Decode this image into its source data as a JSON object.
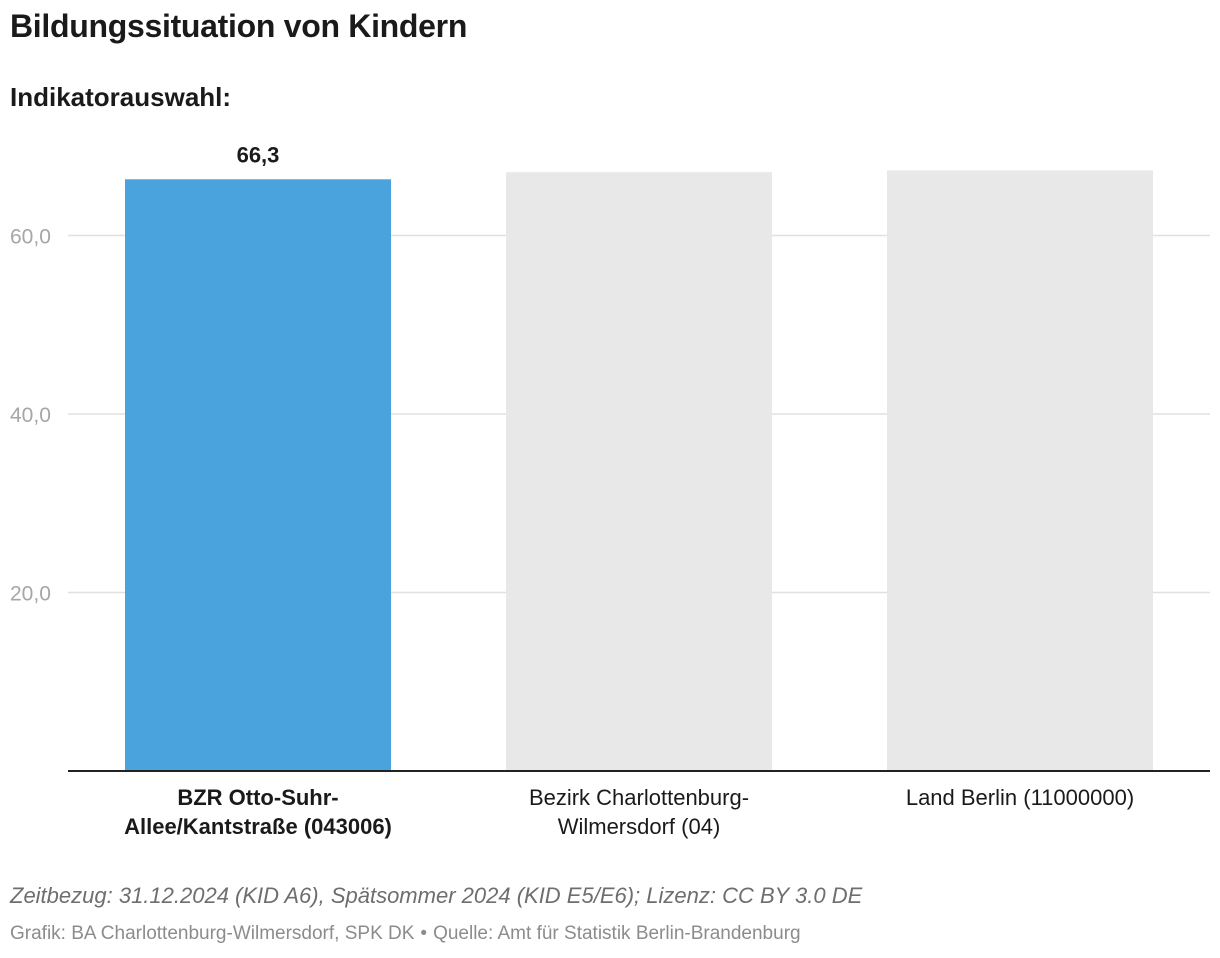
{
  "title": "Bildungssituation von Kindern",
  "subtitle": "Indikatorauswahl:",
  "colors": {
    "highlight": "#4ba3de",
    "muted": "#e8e8e8",
    "grid": "#e0e0e0",
    "axis": "#222222"
  },
  "chart_data": {
    "type": "bar",
    "title": "Bildungssituation von Kindern",
    "categories": [
      "BZR Otto-Suhr-Allee/Kantstraße (043006)",
      "Bezirk Charlottenburg-Wilmersdorf (04)",
      "Land Berlin (11000000)"
    ],
    "category_lines": [
      [
        "BZR Otto-Suhr-",
        "Allee/Kantstraße (043006)"
      ],
      [
        "Bezirk Charlottenburg-",
        "Wilmersdorf (04)"
      ],
      [
        "Land Berlin (11000000)"
      ]
    ],
    "values": [
      66.3,
      67.1,
      67.3
    ],
    "value_labels": [
      "66,3",
      "",
      ""
    ],
    "highlighted_index": 0,
    "yticks": [
      20,
      40,
      60
    ],
    "ytick_labels": [
      "20,0",
      "40,0",
      "60,0"
    ],
    "ylim": [
      0,
      71
    ],
    "xlabel": "",
    "ylabel": "",
    "grid": true,
    "legend": "none"
  },
  "footer": {
    "note": "Zeitbezug: 31.12.2024 (KID A6), Spätsommer 2024 (KID E5/E6); Lizenz: CC BY 3.0 DE",
    "credit": "Grafik: BA Charlottenburg-Wilmersdorf, SPK DK",
    "separator": "•",
    "source": "Quelle: Amt für Statistik Berlin-Brandenburg"
  }
}
